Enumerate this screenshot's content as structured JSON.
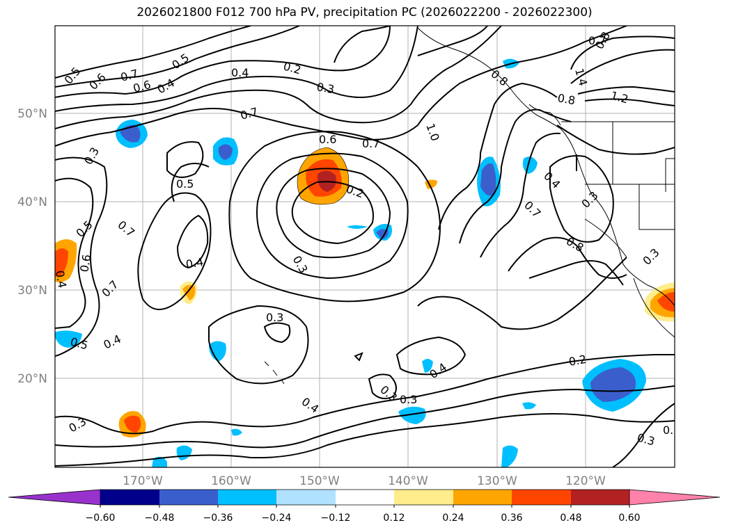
{
  "title": "2026021800 F012 700 hPa PV, precipitation PC (2026022200 - 2026022300)",
  "axes": {
    "lon_labels": [
      "170°W",
      "160°W",
      "150°W",
      "140°W",
      "130°W",
      "120°W"
    ],
    "lat_labels": [
      "50°N",
      "40°N",
      "30°N",
      "20°N"
    ]
  },
  "contour_labels": [
    "0.5",
    "0.6",
    "0.7",
    "0.6",
    "0.4",
    "0.5",
    "0.4",
    "0.2",
    "0.3",
    "0.7",
    "0.6",
    "0.7",
    "0.2",
    "0.3",
    "0.5",
    "0.7",
    "0.5",
    "0.6",
    "0.7",
    "0.4",
    "0.4",
    "0.5",
    "0.4",
    "0.3",
    "0.3",
    "0.4",
    "0.3",
    "0.3",
    "1.0",
    "0.4",
    "0.8",
    "1.4",
    "0.8",
    "1.2",
    "0.7",
    "0.8",
    "0.4",
    "0.7",
    "0.3",
    "0.8",
    "0.3",
    "0.2",
    "0.3",
    "0.3",
    "0.3"
  ],
  "colorbar": {
    "ticks": [
      "−0.60",
      "−0.48",
      "−0.36",
      "−0.24",
      "−0.12",
      "0.12",
      "0.24",
      "0.36",
      "0.48",
      "0.60"
    ],
    "colors": [
      "#9932cc",
      "#00008b",
      "#3a5fcd",
      "#00bfff",
      "#b0e2ff",
      "#ffffff",
      "#ffec8b",
      "#ffa500",
      "#ff4500",
      "#b22222",
      "#ff82ab"
    ]
  },
  "precip_blobs": [
    {
      "name": "blob-150w-42n",
      "color_levels": [
        0.24,
        0.36,
        0.48
      ]
    },
    {
      "name": "blob-172w-48n",
      "color_levels": [
        -0.24,
        -0.36,
        -0.48
      ]
    },
    {
      "name": "blob-131w-42n",
      "color_levels": [
        -0.24,
        -0.36,
        -0.48
      ]
    },
    {
      "name": "blob-116w-19n",
      "color_levels": [
        -0.24,
        -0.36,
        -0.48
      ]
    },
    {
      "name": "blob-112w-28n",
      "color_levels": [
        0.24,
        0.36,
        0.48
      ]
    },
    {
      "name": "blob-180w-34n",
      "color_levels": [
        0.24,
        0.36
      ]
    },
    {
      "name": "blob-172w-15n",
      "color_levels": [
        0.24,
        0.36,
        0.48
      ]
    }
  ]
}
